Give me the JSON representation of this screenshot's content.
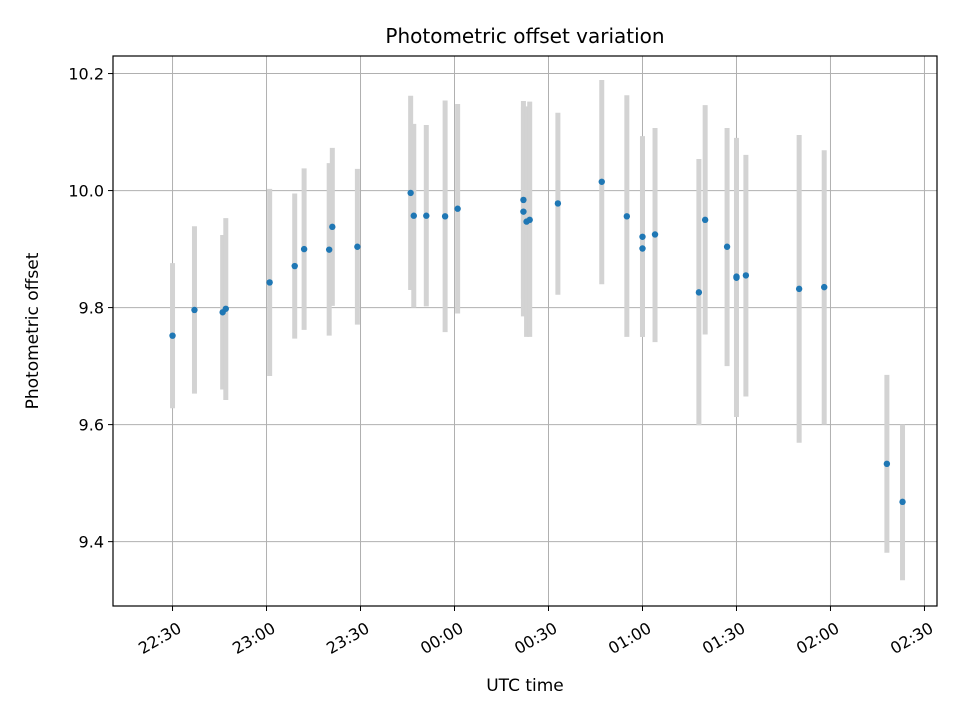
{
  "chart_data": {
    "type": "scatter",
    "title": "Photometric offset variation",
    "xlabel": "UTC time",
    "ylabel": "Photometric offset",
    "grid": true,
    "x_axis": {
      "unit": "UTC time",
      "range": [
        "22:11",
        "02:34"
      ],
      "ticks": [
        {
          "t": "22:30",
          "label": "22:30"
        },
        {
          "t": "23:00",
          "label": "23:00"
        },
        {
          "t": "23:30",
          "label": "23:30"
        },
        {
          "t": "00:00",
          "label": "00:00"
        },
        {
          "t": "00:30",
          "label": "00:30"
        },
        {
          "t": "01:00",
          "label": "01:00"
        },
        {
          "t": "01:30",
          "label": "01:30"
        },
        {
          "t": "02:00",
          "label": "02:00"
        },
        {
          "t": "02:30",
          "label": "02:30"
        }
      ]
    },
    "y_axis": {
      "range": [
        9.29,
        10.23
      ],
      "ticks": [
        {
          "v": 9.4,
          "label": "9.4"
        },
        {
          "v": 9.6,
          "label": "9.6"
        },
        {
          "v": 9.8,
          "label": "9.8"
        },
        {
          "v": 10.0,
          "label": "10.0"
        },
        {
          "v": 10.2,
          "label": "10.2"
        }
      ]
    },
    "colors": {
      "points": "#1f77b4",
      "errorbars": "#d3d3d3",
      "grid": "#b0b0b0"
    },
    "points": [
      {
        "t": "22:30",
        "y": 9.752,
        "lo": 9.628,
        "hi": 9.876
      },
      {
        "t": "22:37",
        "y": 9.796,
        "lo": 9.653,
        "hi": 9.939
      },
      {
        "t": "22:46",
        "y": 9.792,
        "lo": 9.66,
        "hi": 9.924
      },
      {
        "t": "22:47",
        "y": 9.798,
        "lo": 9.642,
        "hi": 9.953
      },
      {
        "t": "23:01",
        "y": 9.843,
        "lo": 9.683,
        "hi": 10.003
      },
      {
        "t": "23:09",
        "y": 9.871,
        "lo": 9.747,
        "hi": 9.995
      },
      {
        "t": "23:12",
        "y": 9.9,
        "lo": 9.762,
        "hi": 10.038
      },
      {
        "t": "23:20",
        "y": 9.899,
        "lo": 9.752,
        "hi": 10.047
      },
      {
        "t": "23:21",
        "y": 9.938,
        "lo": 9.803,
        "hi": 10.073
      },
      {
        "t": "23:29",
        "y": 9.904,
        "lo": 9.771,
        "hi": 10.037
      },
      {
        "t": "23:46",
        "y": 9.996,
        "lo": 9.83,
        "hi": 10.162
      },
      {
        "t": "23:47",
        "y": 9.957,
        "lo": 9.8,
        "hi": 10.114
      },
      {
        "t": "23:51",
        "y": 9.957,
        "lo": 9.802,
        "hi": 10.112
      },
      {
        "t": "23:57",
        "y": 9.956,
        "lo": 9.758,
        "hi": 10.154
      },
      {
        "t": "00:01",
        "y": 9.969,
        "lo": 9.79,
        "hi": 10.148
      },
      {
        "t": "00:22",
        "y": 9.964,
        "lo": 9.785,
        "hi": 10.143
      },
      {
        "t": "00:22",
        "y": 9.984,
        "lo": 9.815,
        "hi": 10.153
      },
      {
        "t": "00:23",
        "y": 9.947,
        "lo": 9.75,
        "hi": 10.144
      },
      {
        "t": "00:24",
        "y": 9.95,
        "lo": 9.75,
        "hi": 10.152
      },
      {
        "t": "00:33",
        "y": 9.978,
        "lo": 9.822,
        "hi": 10.133
      },
      {
        "t": "00:47",
        "y": 10.015,
        "lo": 9.84,
        "hi": 10.189
      },
      {
        "t": "00:55",
        "y": 9.956,
        "lo": 9.75,
        "hi": 10.163
      },
      {
        "t": "01:00",
        "y": 9.901,
        "lo": 9.75,
        "hi": 10.052
      },
      {
        "t": "01:00",
        "y": 9.921,
        "lo": 9.75,
        "hi": 10.093
      },
      {
        "t": "01:04",
        "y": 9.925,
        "lo": 9.741,
        "hi": 10.107
      },
      {
        "t": "01:18",
        "y": 9.826,
        "lo": 9.599,
        "hi": 10.054
      },
      {
        "t": "01:20",
        "y": 9.95,
        "lo": 9.754,
        "hi": 10.146
      },
      {
        "t": "01:27",
        "y": 9.904,
        "lo": 9.7,
        "hi": 10.107
      },
      {
        "t": "01:30",
        "y": 9.851,
        "lo": 9.613,
        "hi": 10.09
      },
      {
        "t": "01:30",
        "y": 9.853,
        "lo": 9.7,
        "hi": 10.08
      },
      {
        "t": "01:33",
        "y": 9.855,
        "lo": 9.648,
        "hi": 10.061
      },
      {
        "t": "01:50",
        "y": 9.832,
        "lo": 9.569,
        "hi": 10.095
      },
      {
        "t": "01:58",
        "y": 9.835,
        "lo": 9.6,
        "hi": 10.069
      },
      {
        "t": "02:18",
        "y": 9.533,
        "lo": 9.381,
        "hi": 9.685
      },
      {
        "t": "02:23",
        "y": 9.468,
        "lo": 9.334,
        "hi": 9.6
      }
    ]
  }
}
